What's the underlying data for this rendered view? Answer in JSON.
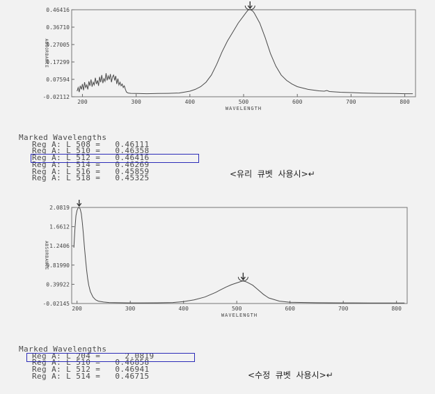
{
  "chart_data": [
    {
      "type": "line",
      "xlabel": "WAVELENGTH",
      "ylabel": "ABSORBANCE",
      "xlim": [
        180,
        820
      ],
      "ylim": [
        -0.02112,
        0.46416
      ],
      "x_ticks": [
        "200",
        "300",
        "400",
        "500",
        "600",
        "700",
        "800"
      ],
      "y_ticks": [
        "0.46416",
        "0.36710",
        "0.27005",
        "0.17299",
        "0.07594",
        "-0.02112"
      ],
      "y_tick_values": [
        0.46416,
        0.3671,
        0.27005,
        0.17299,
        0.07594,
        -0.02112
      ],
      "peak_marker": {
        "x": 512,
        "y": 0.46416
      },
      "series": [
        {
          "x": [
            190,
            192,
            194,
            196,
            198,
            200,
            202,
            204,
            206,
            208,
            210,
            212,
            214,
            216,
            218,
            220,
            222,
            224,
            226,
            228,
            230,
            232,
            234,
            236,
            238,
            240,
            242,
            244,
            246,
            248,
            250,
            252,
            254,
            256,
            258,
            260,
            262,
            264,
            266,
            268,
            270,
            272,
            274,
            276,
            278,
            280,
            282,
            285,
            290,
            300,
            320,
            340,
            360,
            380,
            400,
            410,
            420,
            430,
            440,
            450,
            460,
            470,
            480,
            490,
            500,
            505,
            508,
            510,
            512,
            514,
            516,
            518,
            520,
            530,
            540,
            550,
            560,
            570,
            580,
            590,
            600,
            620,
            640,
            650,
            655,
            660,
            680,
            700,
            720,
            750,
            780,
            800,
            815
          ],
          "y": [
            0.01,
            0.03,
            0.005,
            0.04,
            0.02,
            0.05,
            0.015,
            0.06,
            0.03,
            0.045,
            0.02,
            0.065,
            0.04,
            0.075,
            0.035,
            0.06,
            0.045,
            0.085,
            0.05,
            0.07,
            0.04,
            0.09,
            0.06,
            0.1,
            0.055,
            0.08,
            0.065,
            0.11,
            0.07,
            0.095,
            0.075,
            0.105,
            0.06,
            0.09,
            0.1,
            0.07,
            0.095,
            0.05,
            0.08,
            0.045,
            0.06,
            0.04,
            0.05,
            0.03,
            0.04,
            0.02,
            0.005,
            0.0,
            -0.002,
            -0.003,
            -0.004,
            -0.003,
            -0.002,
            0.0,
            0.01,
            0.02,
            0.035,
            0.06,
            0.1,
            0.16,
            0.23,
            0.29,
            0.34,
            0.39,
            0.43,
            0.45,
            0.461,
            0.4636,
            0.4642,
            0.4627,
            0.4586,
            0.4533,
            0.445,
            0.39,
            0.31,
            0.22,
            0.15,
            0.1,
            0.07,
            0.05,
            0.035,
            0.02,
            0.012,
            0.01,
            0.014,
            0.008,
            0.004,
            0.002,
            0.0,
            -0.002,
            -0.003,
            -0.004,
            -0.004
          ]
        }
      ]
    },
    {
      "type": "line",
      "xlabel": "WAVELENGTH",
      "ylabel": "ABSORBANCE",
      "xlim": [
        190,
        820
      ],
      "ylim": [
        -0.02145,
        2.0819
      ],
      "x_ticks": [
        "200",
        "300",
        "400",
        "500",
        "600",
        "700",
        "800"
      ],
      "y_ticks": [
        "2.0819",
        "1.6612",
        "1.2406",
        "0.81990",
        "0.39922",
        "-0.02145"
      ],
      "y_tick_values": [
        2.0819,
        1.6612,
        1.2406,
        0.8199,
        0.39922,
        -0.02145
      ],
      "peak_markers": [
        {
          "x": 204,
          "y": 2.0819
        },
        {
          "x": 512,
          "y": 0.46941
        }
      ],
      "series": [
        {
          "x": [
            194,
            196,
            198,
            200,
            202,
            204,
            206,
            208,
            210,
            212,
            214,
            216,
            218,
            220,
            222,
            225,
            230,
            235,
            240,
            250,
            260,
            280,
            300,
            320,
            350,
            380,
            400,
            420,
            440,
            460,
            470,
            480,
            490,
            500,
            505,
            510,
            512,
            514,
            516,
            520,
            530,
            540,
            550,
            560,
            580,
            600,
            650,
            700,
            750,
            800,
            815
          ],
          "y": [
            1.2,
            1.6,
            1.9,
            2.02,
            2.07,
            2.0819,
            2.05,
            1.95,
            1.75,
            1.5,
            1.2,
            0.95,
            0.72,
            0.52,
            0.38,
            0.24,
            0.12,
            0.06,
            0.03,
            0.01,
            0.0,
            -0.005,
            -0.008,
            -0.008,
            -0.006,
            0.0,
            0.02,
            0.06,
            0.12,
            0.22,
            0.28,
            0.34,
            0.39,
            0.43,
            0.45,
            0.46858,
            0.46941,
            0.46715,
            0.46,
            0.44,
            0.38,
            0.28,
            0.18,
            0.1,
            0.03,
            0.005,
            -0.005,
            -0.008,
            -0.01,
            -0.01,
            -0.01
          ]
        }
      ]
    }
  ],
  "tables": [
    {
      "header": "Marked Wavelengths",
      "rows": [
        "Reg A: L 508 =   0.46111",
        "Reg A: L 510 =   0.46358",
        "Reg A: L 512 =   0.46416",
        "Reg A: L 514 =   0.46269",
        "Reg A: L 516 =   0.45859",
        "Reg A: L 518 =   0.45325"
      ],
      "note": "<유리  큐벳  사용시>↵"
    },
    {
      "header": "Marked Wavelengths",
      "rows": [
        "Reg A: L 204 =     2.0819",
        "Reg A: L 510 =   0.46858",
        "Reg A: L 512 =   0.46941",
        "Reg A: L 514 =   0.46715"
      ],
      "note": "<수정  큐벳  사용시>↵"
    }
  ],
  "colors": {
    "line": "#4a4a4a",
    "highlight": "#2b2bb8",
    "background": "#f2f2f2"
  }
}
